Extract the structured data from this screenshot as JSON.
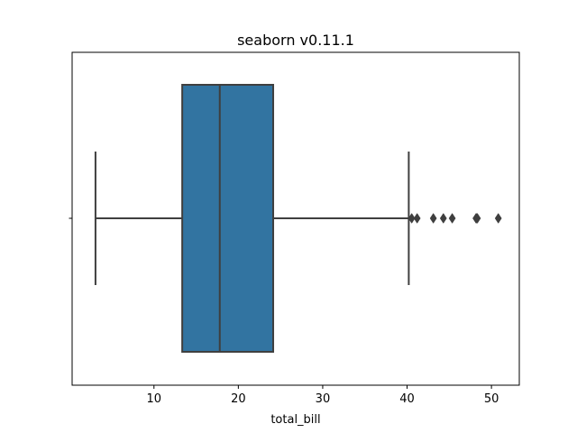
{
  "chart_data": {
    "type": "box",
    "title": "seaborn v0.11.1",
    "xlabel": "total_bill",
    "ylabel": "",
    "orientation": "horizontal",
    "xlim": [
      0.3,
      53.3
    ],
    "xticks": [
      10,
      20,
      30,
      40,
      50
    ],
    "grid": false,
    "legend": "none",
    "box": {
      "whisker_low": 3.07,
      "q1": 13.35,
      "median": 17.8,
      "q3": 24.13,
      "whisker_high": 40.2,
      "outliers": [
        40.55,
        41.19,
        43.11,
        44.3,
        45.35,
        48.17,
        48.27,
        48.33,
        50.81
      ]
    },
    "colors": {
      "box_fill": "#3274a1",
      "line": "#3f3f3f",
      "axes": "#000000"
    }
  }
}
